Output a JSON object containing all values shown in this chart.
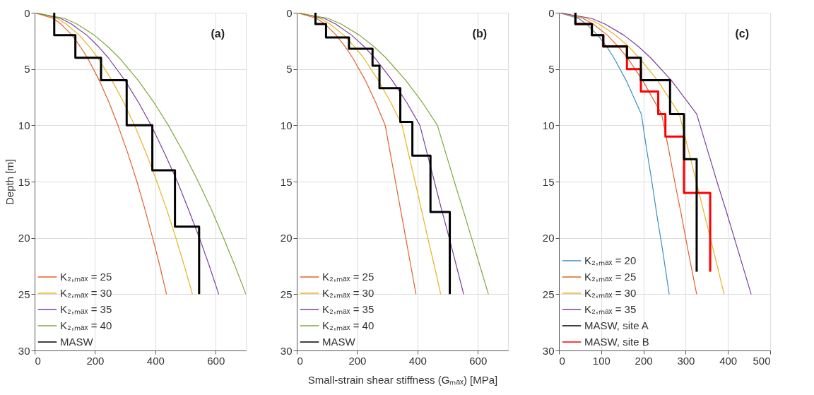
{
  "chart_data": [
    {
      "type": "line",
      "title": "(a)",
      "ylabel": "Depth [m]",
      "xlim": [
        0,
        700
      ],
      "xticks": [
        0,
        200,
        400,
        600
      ],
      "ylim": [
        30,
        0
      ],
      "yticks": [
        0,
        5,
        10,
        15,
        20,
        25,
        30
      ],
      "grid": true,
      "legend": "bottom left",
      "series": [
        {
          "name": "K₂,ₘₐₓ = 25",
          "color": "#e0622a",
          "x": [
            0,
            62,
            87,
            124,
            151,
            175,
            214,
            247,
            276,
            309,
            339,
            366,
            391,
            415,
            437
          ],
          "values": [
            0,
            0.5,
            1,
            2,
            3,
            4,
            6,
            8,
            10,
            12.5,
            15,
            17.5,
            20,
            22.5,
            25
          ]
        },
        {
          "name": "K₂,ₘₐₓ = 30",
          "color": "#e6b422",
          "x": [
            0,
            74,
            105,
            148,
            181,
            209,
            256,
            296,
            331,
            370,
            405,
            438,
            468,
            496,
            523
          ],
          "values": [
            0,
            0.5,
            1,
            2,
            3,
            4,
            6,
            8,
            10,
            12.5,
            15,
            17.5,
            20,
            22.5,
            25
          ]
        },
        {
          "name": "K₂,ₘₐₓ = 35",
          "color": "#7b3f9e",
          "x": [
            0,
            86,
            122,
            173,
            211,
            244,
            299,
            345,
            386,
            431,
            473,
            510,
            546,
            579,
            610
          ],
          "values": [
            0,
            0.5,
            1,
            2,
            3,
            4,
            6,
            8,
            10,
            12.5,
            15,
            17.5,
            20,
            22.5,
            25
          ]
        },
        {
          "name": "K₂,ₘₐₓ = 40",
          "color": "#7fa83a",
          "x": [
            0,
            99,
            140,
            198,
            242,
            280,
            343,
            396,
            443,
            495,
            542,
            586,
            626,
            664,
            700
          ],
          "values": [
            0,
            0.5,
            1,
            2,
            3,
            4,
            6,
            8,
            10,
            12.5,
            15,
            17.5,
            20,
            22.5,
            25
          ]
        },
        {
          "name": "MASW",
          "color": "#000000",
          "type": "step",
          "x": [
            65,
            135,
            220,
            305,
            390,
            465,
            545,
            545
          ],
          "values": [
            0,
            2,
            4,
            6,
            10,
            14,
            19,
            25
          ]
        }
      ]
    },
    {
      "type": "line",
      "title": "(b)",
      "xlabel": "Small-strain shear stiffness (Gₘₐₓ) [MPa]",
      "xlim": [
        0,
        700
      ],
      "xticks": [
        0,
        200,
        400,
        600
      ],
      "ylim": [
        30,
        0
      ],
      "yticks": [
        0,
        5,
        10,
        15,
        20,
        25,
        30
      ],
      "grid": true,
      "legend": "bottom left",
      "series": [
        {
          "name": "K₂,ₘₐₓ = 25",
          "color": "#e0622a",
          "x": [
            0,
            66,
            93,
            131,
            160,
            185,
            227,
            262,
            293,
            310,
            327,
            344,
            361,
            378,
            395
          ],
          "values": [
            0,
            0.5,
            1,
            2,
            3,
            4,
            6,
            8,
            10,
            12.5,
            15,
            17.5,
            20,
            22.5,
            25
          ]
        },
        {
          "name": "K₂,ₘₐₓ = 30",
          "color": "#e6b422",
          "x": [
            0,
            78,
            110,
            156,
            191,
            221,
            270,
            312,
            349,
            370,
            392,
            413,
            434,
            456,
            477
          ],
          "values": [
            0,
            0.5,
            1,
            2,
            3,
            4,
            6,
            8,
            10,
            12.5,
            15,
            17.5,
            20,
            22.5,
            25
          ]
        },
        {
          "name": "K₂,ₘₐₓ = 35",
          "color": "#7b3f9e",
          "x": [
            0,
            91,
            129,
            182,
            223,
            258,
            316,
            365,
            408,
            432,
            456,
            480,
            505,
            529,
            553
          ],
          "values": [
            0,
            0.5,
            1,
            2,
            3,
            4,
            6,
            8,
            10,
            12.5,
            15,
            17.5,
            20,
            22.5,
            25
          ]
        },
        {
          "name": "K₂,ₘₐₓ = 40",
          "color": "#7fa83a",
          "x": [
            0,
            104,
            147,
            208,
            255,
            295,
            361,
            417,
            466,
            494,
            522,
            551,
            579,
            607,
            635
          ],
          "values": [
            0,
            0.5,
            1,
            2,
            3,
            4,
            6,
            8,
            10,
            12.5,
            15,
            17.5,
            20,
            22.5,
            25
          ]
        },
        {
          "name": "MASW",
          "color": "#000000",
          "type": "step",
          "x": [
            62,
            97,
            173,
            251,
            274,
            343,
            383,
            443,
            507,
            507
          ],
          "values": [
            0,
            1,
            2.2,
            3.2,
            4.7,
            6.7,
            9.7,
            12.7,
            17.7,
            25
          ]
        }
      ]
    },
    {
      "type": "line",
      "title": "(c)",
      "xlim": [
        0,
        500
      ],
      "xticks": [
        0,
        100,
        200,
        300,
        400,
        500
      ],
      "ylim": [
        30,
        0
      ],
      "yticks": [
        0,
        5,
        10,
        15,
        20,
        25,
        30
      ],
      "grid": true,
      "legend": "bottom left",
      "series": [
        {
          "name": "K₂,ₘₐₓ = 20",
          "color": "#3a8fc7",
          "x": [
            0,
            46,
            65,
            92,
            113,
            130,
            159,
            195,
            207,
            220,
            232,
            245,
            261
          ],
          "values": [
            0,
            0.5,
            1,
            2,
            3,
            4,
            6,
            9,
            12,
            15,
            18,
            21,
            25
          ]
        },
        {
          "name": "K₂,ₘₐₓ = 25",
          "color": "#e0622a",
          "x": [
            0,
            57,
            81,
            115,
            140,
            162,
            198,
            243,
            259,
            274,
            290,
            305,
            326
          ],
          "values": [
            0,
            0.5,
            1,
            2,
            3,
            4,
            6,
            9,
            12,
            15,
            18,
            21,
            25
          ]
        },
        {
          "name": "K₂,ₘₐₓ = 30",
          "color": "#e6b422",
          "x": [
            0,
            67,
            95,
            134,
            165,
            190,
            233,
            285,
            305,
            325,
            345,
            365,
            391
          ],
          "values": [
            0,
            0.5,
            1,
            2,
            3,
            4,
            6,
            9,
            12,
            15,
            18,
            21,
            25
          ]
        },
        {
          "name": "K₂,ₘₐₓ = 35",
          "color": "#7b3f9e",
          "x": [
            0,
            77,
            109,
            154,
            188,
            217,
            266,
            326,
            350,
            374,
            399,
            423,
            455
          ],
          "values": [
            0,
            0.5,
            1,
            2,
            3,
            4,
            6,
            9,
            12,
            15,
            18,
            21,
            25
          ]
        },
        {
          "name": "MASW, site A",
          "color": "#000000",
          "type": "step",
          "x": [
            39,
            78,
            105,
            161,
            194,
            263,
            296,
            326,
            326
          ],
          "values": [
            0,
            1,
            2,
            3,
            4,
            6,
            9,
            13,
            23
          ]
        },
        {
          "name": "MASW, site B",
          "color": "#ff0000",
          "type": "step",
          "x": [
            39,
            78,
            105,
            161,
            194,
            235,
            252,
            296,
            358,
            358
          ],
          "values": [
            0,
            1,
            2,
            3,
            5,
            7,
            9,
            11,
            16,
            23
          ]
        }
      ]
    }
  ]
}
